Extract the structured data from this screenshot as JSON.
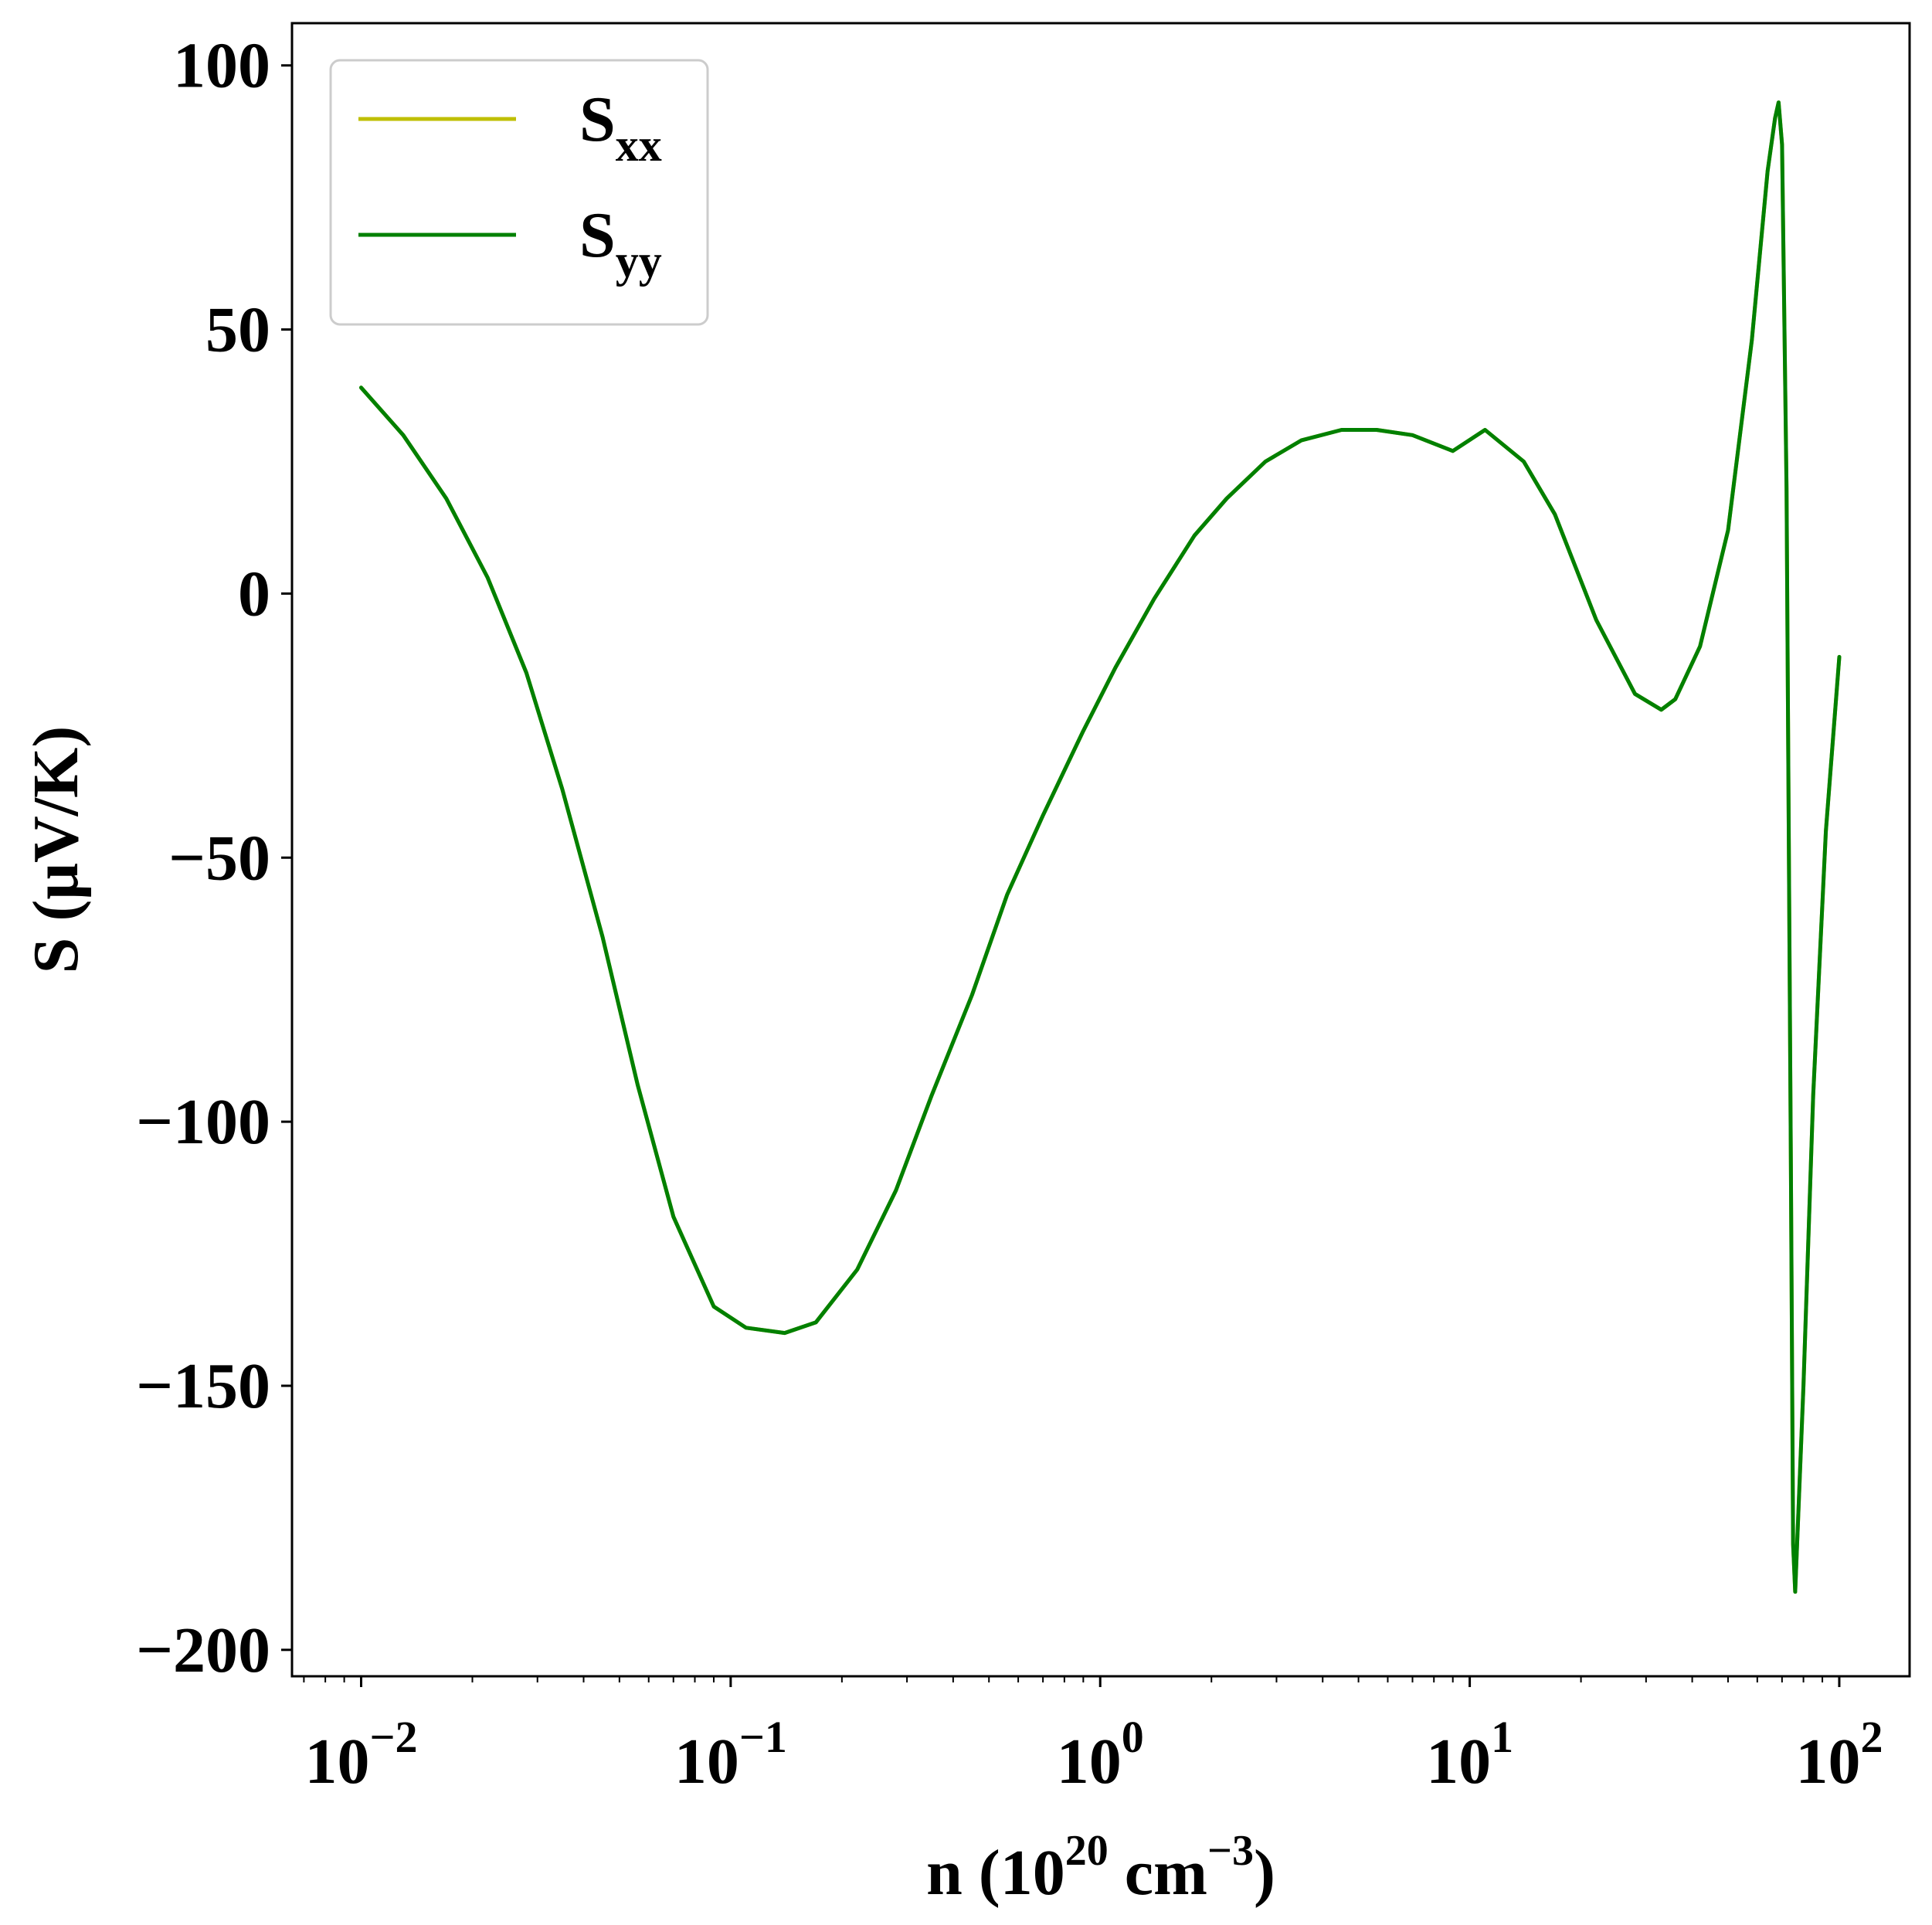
{
  "chart_data": {
    "type": "line",
    "xlabel": {
      "base": "n (10",
      "exp1": "20",
      "mid": " cm",
      "exp2": "−3",
      "tail": ")"
    },
    "ylabel": "S (μV/K)",
    "xscale": "log",
    "xlim": [
      0.0065,
      155
    ],
    "ylim": [
      -205,
      108
    ],
    "x_ticks": [
      {
        "value": 0.01,
        "base": "10",
        "exp": "−2"
      },
      {
        "value": 0.1,
        "base": "10",
        "exp": "−1"
      },
      {
        "value": 1,
        "base": "10",
        "exp": "0"
      },
      {
        "value": 10,
        "base": "10",
        "exp": "1"
      },
      {
        "value": 100,
        "base": "10",
        "exp": "2"
      }
    ],
    "y_ticks": [
      {
        "value": 100,
        "label": "100"
      },
      {
        "value": 50,
        "label": "50"
      },
      {
        "value": 0,
        "label": "0"
      },
      {
        "value": -50,
        "label": "−50"
      },
      {
        "value": -100,
        "label": "−100"
      },
      {
        "value": -150,
        "label": "−150"
      },
      {
        "value": -200,
        "label": "−200"
      }
    ],
    "grid": false,
    "legend": {
      "placement": "top-left"
    },
    "series": [
      {
        "name": "S",
        "sub": "xx",
        "color": "#bfbf00",
        "x": [
          0.01,
          0.013,
          0.017,
          0.022,
          0.028,
          0.035,
          0.045,
          0.056,
          0.07,
          0.09,
          0.11,
          0.14,
          0.17,
          0.22,
          0.28,
          0.35,
          0.45,
          0.56,
          0.7,
          0.9,
          1.1,
          1.4,
          1.8,
          2.2,
          2.8,
          3.5,
          4.5,
          5.6,
          7,
          9,
          11,
          14,
          17,
          22,
          28,
          33,
          36,
          42,
          50,
          58,
          64,
          67,
          68.5,
          70,
          72,
          74,
          75,
          76,
          80,
          85,
          92,
          100
        ],
        "y": [
          39,
          30,
          18,
          3,
          -15,
          -37,
          -65,
          -93,
          -118,
          -135,
          -139,
          -140,
          -138,
          -128,
          -113,
          -95,
          -76,
          -57,
          -42,
          -26,
          -14,
          -1,
          11,
          18,
          25,
          29,
          31,
          31,
          30,
          27,
          31,
          25,
          15,
          -5,
          -19,
          -22,
          -20,
          -10,
          12,
          48,
          80,
          90,
          93,
          85,
          20,
          -110,
          -180,
          -189,
          -150,
          -95,
          -45,
          -12
        ]
      },
      {
        "name": "S",
        "sub": "yy",
        "color": "#008000",
        "x": [
          0.01,
          0.013,
          0.017,
          0.022,
          0.028,
          0.035,
          0.045,
          0.056,
          0.07,
          0.09,
          0.11,
          0.14,
          0.17,
          0.22,
          0.28,
          0.35,
          0.45,
          0.56,
          0.7,
          0.9,
          1.1,
          1.4,
          1.8,
          2.2,
          2.8,
          3.5,
          4.5,
          5.6,
          7,
          9,
          11,
          14,
          17,
          22,
          28,
          33,
          36,
          42,
          50,
          58,
          64,
          67,
          68.5,
          70,
          72,
          74,
          75,
          76,
          80,
          85,
          92,
          100
        ],
        "y": [
          39,
          30,
          18,
          3,
          -15,
          -37,
          -65,
          -93,
          -118,
          -135,
          -139,
          -140,
          -138,
          -128,
          -113,
          -95,
          -76,
          -57,
          -42,
          -26,
          -14,
          -1,
          11,
          18,
          25,
          29,
          31,
          31,
          30,
          27,
          31,
          25,
          15,
          -5,
          -19,
          -22,
          -20,
          -10,
          12,
          48,
          80,
          90,
          93,
          85,
          20,
          -110,
          -180,
          -189,
          -150,
          -95,
          -45,
          -12
        ]
      }
    ]
  }
}
